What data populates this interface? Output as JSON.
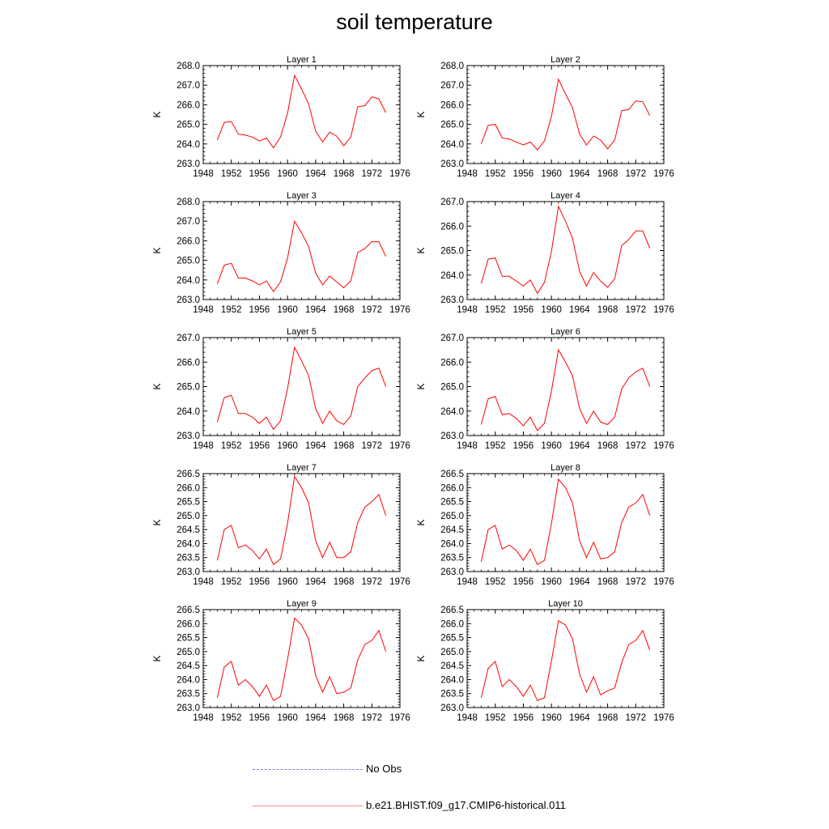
{
  "title": "soil temperature",
  "legend": {
    "no_obs_label": "No Obs",
    "model_label": "b.e21.BHIST.f09_g17.CMIP6-historical.011",
    "no_obs_color": "#7a7adb",
    "model_color": "#ff0000"
  },
  "chart_data": [
    {
      "type": "line",
      "title": "Layer 1",
      "xlabel": "",
      "ylabel": "K",
      "xlim": [
        1948,
        1976
      ],
      "ylim": [
        263.0,
        268.0
      ],
      "xticks": [
        "1948",
        "1952",
        "1956",
        "1960",
        "1964",
        "1968",
        "1972",
        "1976"
      ],
      "yticks": [
        "263.0",
        "264.0",
        "265.0",
        "266.0",
        "267.0",
        "268.0"
      ],
      "x": [
        1950,
        1951,
        1952,
        1953,
        1954,
        1955,
        1956,
        1957,
        1958,
        1959,
        1960,
        1961,
        1962,
        1963,
        1964,
        1965,
        1966,
        1967,
        1968,
        1969,
        1970,
        1971,
        1972,
        1973,
        1974
      ],
      "series": [
        {
          "name": "b.e21.BHIST.f09_g17.CMIP6-historical.011",
          "values": [
            264.2,
            265.1,
            265.15,
            264.5,
            264.45,
            264.35,
            264.15,
            264.3,
            263.8,
            264.35,
            265.55,
            267.5,
            266.8,
            266.05,
            264.65,
            264.1,
            264.6,
            264.4,
            263.9,
            264.35,
            265.9,
            265.95,
            266.4,
            266.3,
            265.6
          ]
        }
      ]
    },
    {
      "type": "line",
      "title": "Layer 2",
      "xlabel": "",
      "ylabel": "K",
      "xlim": [
        1948,
        1976
      ],
      "ylim": [
        263.0,
        268.0
      ],
      "xticks": [
        "1948",
        "1952",
        "1956",
        "1960",
        "1964",
        "1968",
        "1972",
        "1976"
      ],
      "yticks": [
        "263.0",
        "264.0",
        "265.0",
        "266.0",
        "267.0",
        "268.0"
      ],
      "x": [
        1950,
        1951,
        1952,
        1953,
        1954,
        1955,
        1956,
        1957,
        1958,
        1959,
        1960,
        1961,
        1962,
        1963,
        1964,
        1965,
        1966,
        1967,
        1968,
        1969,
        1970,
        1971,
        1972,
        1973,
        1974
      ],
      "series": [
        {
          "name": "b.e21.BHIST.f09_g17.CMIP6-historical.011",
          "values": [
            264.0,
            264.95,
            265.0,
            264.3,
            264.25,
            264.1,
            263.95,
            264.1,
            263.7,
            264.15,
            265.4,
            267.3,
            266.55,
            265.85,
            264.5,
            263.95,
            264.4,
            264.2,
            263.75,
            264.2,
            265.7,
            265.75,
            266.2,
            266.15,
            265.45
          ]
        }
      ]
    },
    {
      "type": "line",
      "title": "Layer 3",
      "xlabel": "",
      "ylabel": "K",
      "xlim": [
        1948,
        1976
      ],
      "ylim": [
        263.0,
        268.0
      ],
      "xticks": [
        "1948",
        "1952",
        "1956",
        "1960",
        "1964",
        "1968",
        "1972",
        "1976"
      ],
      "yticks": [
        "263.0",
        "264.0",
        "265.0",
        "266.0",
        "267.0",
        "268.0"
      ],
      "x": [
        1950,
        1951,
        1952,
        1953,
        1954,
        1955,
        1956,
        1957,
        1958,
        1959,
        1960,
        1961,
        1962,
        1963,
        1964,
        1965,
        1966,
        1967,
        1968,
        1969,
        1970,
        1971,
        1972,
        1973,
        1974
      ],
      "series": [
        {
          "name": "b.e21.BHIST.f09_g17.CMIP6-historical.011",
          "values": [
            263.8,
            264.75,
            264.85,
            264.1,
            264.1,
            263.95,
            263.75,
            263.95,
            263.4,
            263.9,
            265.1,
            267.0,
            266.4,
            265.7,
            264.35,
            263.75,
            264.2,
            263.9,
            263.6,
            263.95,
            265.4,
            265.6,
            265.95,
            265.95,
            265.2
          ]
        }
      ]
    },
    {
      "type": "line",
      "title": "Layer 4",
      "xlabel": "",
      "ylabel": "K",
      "xlim": [
        1948,
        1976
      ],
      "ylim": [
        263.0,
        267.0
      ],
      "xticks": [
        "1948",
        "1952",
        "1956",
        "1960",
        "1964",
        "1968",
        "1972",
        "1976"
      ],
      "yticks": [
        "263.0",
        "264.0",
        "265.0",
        "266.0",
        "267.0"
      ],
      "x": [
        1950,
        1951,
        1952,
        1953,
        1954,
        1955,
        1956,
        1957,
        1958,
        1959,
        1960,
        1961,
        1962,
        1963,
        1964,
        1965,
        1966,
        1967,
        1968,
        1969,
        1970,
        1971,
        1972,
        1973,
        1974
      ],
      "series": [
        {
          "name": "b.e21.BHIST.f09_g17.CMIP6-historical.011",
          "values": [
            263.65,
            264.65,
            264.7,
            263.95,
            263.95,
            263.75,
            263.55,
            263.8,
            263.25,
            263.7,
            264.95,
            266.8,
            266.2,
            265.5,
            264.15,
            263.55,
            264.1,
            263.75,
            263.5,
            263.85,
            265.2,
            265.45,
            265.8,
            265.8,
            265.1
          ]
        }
      ]
    },
    {
      "type": "line",
      "title": "Layer 5",
      "xlabel": "",
      "ylabel": "K",
      "xlim": [
        1948,
        1976
      ],
      "ylim": [
        263.0,
        267.0
      ],
      "xticks": [
        "1948",
        "1952",
        "1956",
        "1960",
        "1964",
        "1968",
        "1972",
        "1976"
      ],
      "yticks": [
        "263.0",
        "264.0",
        "265.0",
        "266.0",
        "267.0"
      ],
      "x": [
        1950,
        1951,
        1952,
        1953,
        1954,
        1955,
        1956,
        1957,
        1958,
        1959,
        1960,
        1961,
        1962,
        1963,
        1964,
        1965,
        1966,
        1967,
        1968,
        1969,
        1970,
        1971,
        1972,
        1973,
        1974
      ],
      "series": [
        {
          "name": "b.e21.BHIST.f09_g17.CMIP6-historical.011",
          "values": [
            263.55,
            264.55,
            264.65,
            263.9,
            263.9,
            263.75,
            263.5,
            263.75,
            263.25,
            263.6,
            264.9,
            266.6,
            266.05,
            265.45,
            264.1,
            263.5,
            264.0,
            263.6,
            263.45,
            263.8,
            265.0,
            265.35,
            265.65,
            265.75,
            265.0
          ]
        }
      ]
    },
    {
      "type": "line",
      "title": "Layer 6",
      "xlabel": "",
      "ylabel": "K",
      "xlim": [
        1948,
        1976
      ],
      "ylim": [
        263.0,
        267.0
      ],
      "xticks": [
        "1948",
        "1952",
        "1956",
        "1960",
        "1964",
        "1968",
        "1972",
        "1976"
      ],
      "yticks": [
        "263.0",
        "264.0",
        "265.0",
        "266.0",
        "267.0"
      ],
      "x": [
        1950,
        1951,
        1952,
        1953,
        1954,
        1955,
        1956,
        1957,
        1958,
        1959,
        1960,
        1961,
        1962,
        1963,
        1964,
        1965,
        1966,
        1967,
        1968,
        1969,
        1970,
        1971,
        1972,
        1973,
        1974
      ],
      "series": [
        {
          "name": "b.e21.BHIST.f09_g17.CMIP6-historical.011",
          "values": [
            263.45,
            264.5,
            264.6,
            263.85,
            263.9,
            263.7,
            263.4,
            263.75,
            263.2,
            263.5,
            264.8,
            266.5,
            266.0,
            265.45,
            264.1,
            263.5,
            264.0,
            263.55,
            263.45,
            263.75,
            264.9,
            265.35,
            265.6,
            265.75,
            265.0
          ]
        }
      ]
    },
    {
      "type": "line",
      "title": "Layer 7",
      "xlabel": "",
      "ylabel": "K",
      "xlim": [
        1948,
        1976
      ],
      "ylim": [
        263.0,
        266.5
      ],
      "xticks": [
        "1948",
        "1952",
        "1956",
        "1960",
        "1964",
        "1968",
        "1972",
        "1976"
      ],
      "yticks": [
        "263.0",
        "263.5",
        "264.0",
        "264.5",
        "265.0",
        "265.5",
        "266.0",
        "266.5"
      ],
      "x": [
        1950,
        1951,
        1952,
        1953,
        1954,
        1955,
        1956,
        1957,
        1958,
        1959,
        1960,
        1961,
        1962,
        1963,
        1964,
        1965,
        1966,
        1967,
        1968,
        1969,
        1970,
        1971,
        1972,
        1973,
        1974
      ],
      "series": [
        {
          "name": "b.e21.BHIST.f09_g17.CMIP6-historical.011",
          "values": [
            263.4,
            264.5,
            264.65,
            263.85,
            263.95,
            263.75,
            263.45,
            263.8,
            263.25,
            263.45,
            264.7,
            266.4,
            266.0,
            265.45,
            264.1,
            263.5,
            264.05,
            263.5,
            263.5,
            263.7,
            264.75,
            265.3,
            265.5,
            265.75,
            265.0
          ]
        }
      ]
    },
    {
      "type": "line",
      "title": "Layer 8",
      "xlabel": "",
      "ylabel": "K",
      "xlim": [
        1948,
        1976
      ],
      "ylim": [
        263.0,
        266.5
      ],
      "xticks": [
        "1948",
        "1952",
        "1956",
        "1960",
        "1964",
        "1968",
        "1972",
        "1976"
      ],
      "yticks": [
        "263.0",
        "263.5",
        "264.0",
        "264.5",
        "265.0",
        "265.5",
        "266.0",
        "266.5"
      ],
      "x": [
        1950,
        1951,
        1952,
        1953,
        1954,
        1955,
        1956,
        1957,
        1958,
        1959,
        1960,
        1961,
        1962,
        1963,
        1964,
        1965,
        1966,
        1967,
        1968,
        1969,
        1970,
        1971,
        1972,
        1973,
        1974
      ],
      "series": [
        {
          "name": "b.e21.BHIST.f09_g17.CMIP6-historical.011",
          "values": [
            263.35,
            264.5,
            264.65,
            263.8,
            263.95,
            263.75,
            263.4,
            263.8,
            263.25,
            263.4,
            264.7,
            266.3,
            266.0,
            265.45,
            264.1,
            263.5,
            264.05,
            263.45,
            263.5,
            263.7,
            264.75,
            265.3,
            265.45,
            265.75,
            265.0
          ]
        }
      ]
    },
    {
      "type": "line",
      "title": "Layer 9",
      "xlabel": "",
      "ylabel": "K",
      "xlim": [
        1948,
        1976
      ],
      "ylim": [
        263.0,
        266.5
      ],
      "xticks": [
        "1948",
        "1952",
        "1956",
        "1960",
        "1964",
        "1968",
        "1972",
        "1976"
      ],
      "yticks": [
        "263.0",
        "263.5",
        "264.0",
        "264.5",
        "265.0",
        "265.5",
        "266.0",
        "266.5"
      ],
      "x": [
        1950,
        1951,
        1952,
        1953,
        1954,
        1955,
        1956,
        1957,
        1958,
        1959,
        1960,
        1961,
        1962,
        1963,
        1964,
        1965,
        1966,
        1967,
        1968,
        1969,
        1970,
        1971,
        1972,
        1973,
        1974
      ],
      "series": [
        {
          "name": "b.e21.BHIST.f09_g17.CMIP6-historical.011",
          "values": [
            263.35,
            264.45,
            264.65,
            263.8,
            264.0,
            263.75,
            263.4,
            263.8,
            263.25,
            263.4,
            264.7,
            266.2,
            265.95,
            265.45,
            264.15,
            263.55,
            264.1,
            263.5,
            263.55,
            263.7,
            264.7,
            265.25,
            265.4,
            265.75,
            265.0
          ]
        }
      ]
    },
    {
      "type": "line",
      "title": "Layer 10",
      "xlabel": "",
      "ylabel": "K",
      "xlim": [
        1948,
        1976
      ],
      "ylim": [
        263.0,
        266.5
      ],
      "xticks": [
        "1948",
        "1952",
        "1956",
        "1960",
        "1964",
        "1968",
        "1972",
        "1976"
      ],
      "yticks": [
        "263.0",
        "263.5",
        "264.0",
        "264.5",
        "265.0",
        "265.5",
        "266.0",
        "266.5"
      ],
      "x": [
        1950,
        1951,
        1952,
        1953,
        1954,
        1955,
        1956,
        1957,
        1958,
        1959,
        1960,
        1961,
        1962,
        1963,
        1964,
        1965,
        1966,
        1967,
        1968,
        1969,
        1970,
        1971,
        1972,
        1973,
        1974
      ],
      "series": [
        {
          "name": "b.e21.BHIST.f09_g17.CMIP6-historical.011",
          "values": [
            263.35,
            264.4,
            264.65,
            263.75,
            264.0,
            263.75,
            263.4,
            263.8,
            263.25,
            263.35,
            264.65,
            266.1,
            265.95,
            265.45,
            264.2,
            263.55,
            264.1,
            263.45,
            263.6,
            263.7,
            264.6,
            265.25,
            265.4,
            265.75,
            265.05
          ]
        }
      ]
    }
  ]
}
